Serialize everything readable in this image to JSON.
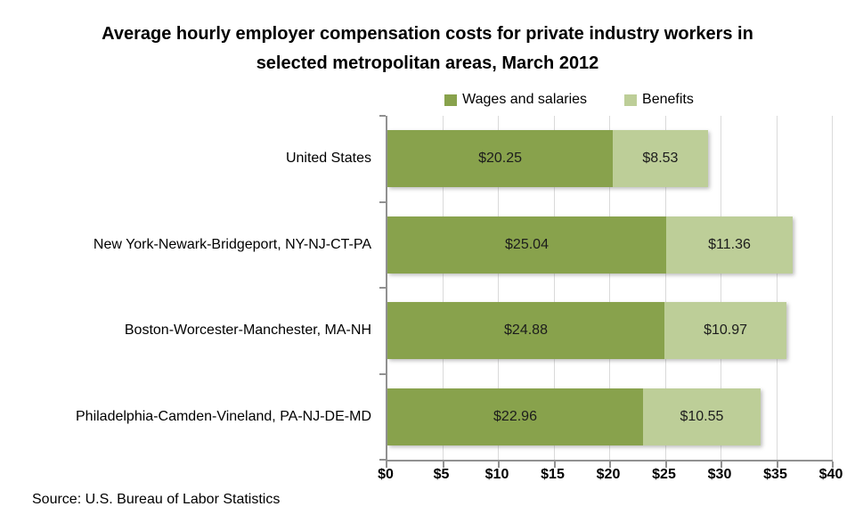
{
  "title": {
    "text": "Average hourly employer compensation costs for private industry workers in selected metropolitan areas, March 2012"
  },
  "source": "Source: U.S. Bureau of Labor Statistics",
  "colors": {
    "wages": "#88A24C",
    "benefits": "#BDCE98",
    "axis": "#919191",
    "gridline": "#DADADA",
    "text": "#000000"
  },
  "chart_data": {
    "type": "bar",
    "orientation": "horizontal",
    "stacked": true,
    "title": "Average hourly employer compensation costs for private industry workers in selected metropolitan areas, March 2012",
    "categories": [
      "United States",
      "New York-Newark-Bridgeport, NY-NJ-CT-PA",
      "Boston-Worcester-Manchester, MA-NH",
      "Philadelphia-Camden-Vineland, PA-NJ-DE-MD"
    ],
    "series": [
      {
        "name": "Wages and salaries",
        "color": "#88A24C",
        "values": [
          20.25,
          25.04,
          24.88,
          22.96
        ],
        "data_labels": [
          "$20.25",
          "$25.04",
          "$24.88",
          "$22.96"
        ]
      },
      {
        "name": "Benefits",
        "color": "#BDCE98",
        "values": [
          8.53,
          11.36,
          10.97,
          10.55
        ],
        "data_labels": [
          "$8.53",
          "$11.36",
          "$10.97",
          "$10.55"
        ]
      }
    ],
    "totals": [
      28.78,
      36.4,
      35.85,
      33.51
    ],
    "xlabel": "",
    "ylabel": "",
    "xlim": [
      0,
      40
    ],
    "xticks": [
      0,
      5,
      10,
      15,
      20,
      25,
      30,
      35,
      40
    ],
    "xtick_labels": [
      "$0",
      "$5",
      "$10",
      "$15",
      "$20",
      "$25",
      "$30",
      "$35",
      "$40"
    ],
    "grid": true,
    "legend_position": "top",
    "source": "Source: U.S. Bureau of Labor Statistics"
  }
}
